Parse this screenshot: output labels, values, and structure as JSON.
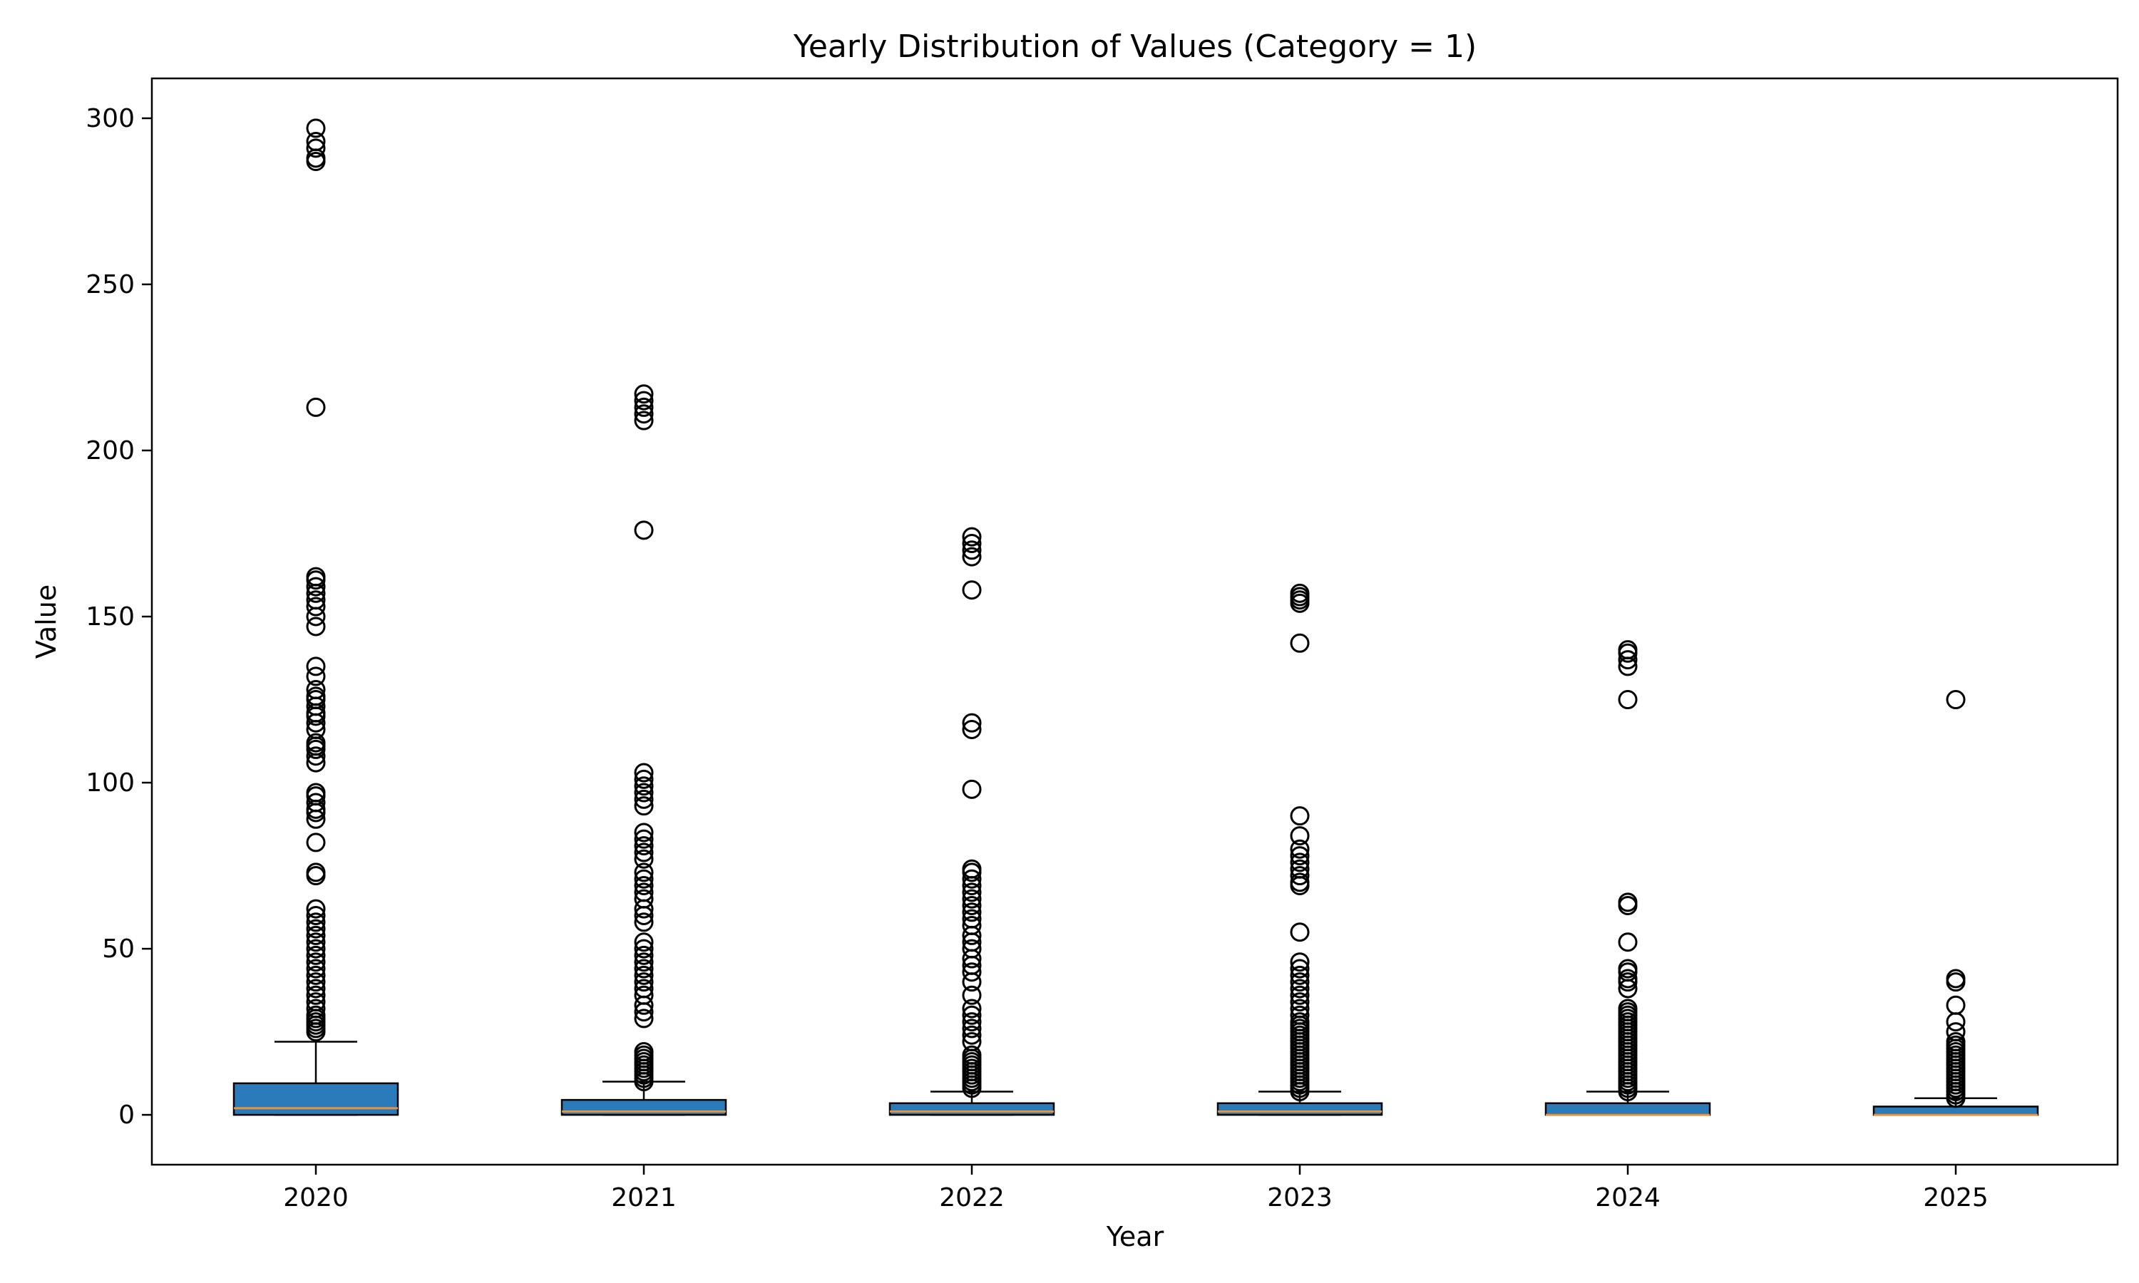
{
  "chart_data": {
    "type": "boxplot",
    "title": "Yearly Distribution of Values (Category = 1)",
    "xlabel": "Year",
    "ylabel": "Value",
    "ylim": [
      -15,
      312
    ],
    "yticks": [
      0,
      50,
      100,
      150,
      200,
      250,
      300
    ],
    "grid": false,
    "colors": {
      "box_fill": "#2b7bba",
      "median": "#e8923a",
      "edge": "#000000",
      "flier": "#000000"
    },
    "boxes": [
      {
        "category": "2020",
        "q1": 0,
        "median": 2,
        "q3": 9.5,
        "whisker_low": 0,
        "whisker_high": 22,
        "fliers": [
          25,
          26,
          27,
          28,
          29,
          30,
          32,
          34,
          36,
          38,
          40,
          42,
          44,
          46,
          48,
          50,
          52,
          54,
          56,
          58,
          60,
          62,
          72,
          73,
          82,
          89,
          91,
          92,
          94,
          96,
          97,
          106,
          108,
          110,
          111,
          112,
          116,
          118,
          120,
          121,
          123,
          125,
          126,
          128,
          132,
          135,
          147,
          150,
          153,
          155,
          157,
          159,
          161,
          162,
          213,
          287,
          288,
          291,
          293,
          297
        ]
      },
      {
        "category": "2021",
        "q1": 0,
        "median": 1,
        "q3": 4.5,
        "whisker_low": 0,
        "whisker_high": 10,
        "fliers": [
          10,
          11,
          12,
          13,
          14,
          15,
          16,
          17,
          18,
          19,
          29,
          31,
          33,
          36,
          38,
          40,
          42,
          44,
          46,
          48,
          50,
          52,
          58,
          60,
          62,
          65,
          67,
          69,
          71,
          73,
          77,
          79,
          81,
          83,
          85,
          93,
          95,
          97,
          99,
          101,
          103,
          176,
          209,
          211,
          213,
          215,
          217
        ]
      },
      {
        "category": "2022",
        "q1": 0,
        "median": 1,
        "q3": 3.5,
        "whisker_low": 0,
        "whisker_high": 7,
        "fliers": [
          8,
          9,
          10,
          11,
          12,
          13,
          14,
          15,
          16,
          17,
          18,
          22,
          24,
          26,
          28,
          30,
          32,
          36,
          40,
          43,
          45,
          47,
          50,
          52,
          54,
          57,
          59,
          61,
          63,
          65,
          67,
          69,
          71,
          73,
          74,
          98,
          116,
          118,
          158,
          168,
          170,
          172,
          174
        ]
      },
      {
        "category": "2023",
        "q1": 0,
        "median": 1,
        "q3": 3.5,
        "whisker_low": 0,
        "whisker_high": 7,
        "fliers": [
          7,
          8,
          9,
          10,
          11,
          12,
          13,
          14,
          15,
          16,
          17,
          18,
          19,
          20,
          21,
          22,
          23,
          24,
          25,
          26,
          27,
          28,
          30,
          32,
          34,
          36,
          38,
          40,
          42,
          44,
          46,
          55,
          69,
          70,
          72,
          74,
          76,
          78,
          80,
          84,
          90,
          142,
          154,
          155,
          156,
          157
        ]
      },
      {
        "category": "2024",
        "q1": 0,
        "median": 0,
        "q3": 3.5,
        "whisker_low": 0,
        "whisker_high": 7,
        "fliers": [
          7,
          8,
          9,
          10,
          11,
          12,
          13,
          14,
          15,
          16,
          17,
          18,
          19,
          20,
          21,
          22,
          23,
          24,
          25,
          26,
          27,
          28,
          29,
          30,
          31,
          32,
          38,
          40,
          41,
          43,
          44,
          52,
          63,
          64,
          125,
          135,
          137,
          139,
          140
        ]
      },
      {
        "category": "2025",
        "q1": 0,
        "median": 0,
        "q3": 2.5,
        "whisker_low": 0,
        "whisker_high": 5,
        "fliers": [
          5,
          6,
          7,
          8,
          9,
          10,
          11,
          12,
          13,
          14,
          15,
          16,
          17,
          18,
          19,
          20,
          21,
          22,
          25,
          28,
          33,
          40,
          41,
          125
        ]
      }
    ]
  }
}
